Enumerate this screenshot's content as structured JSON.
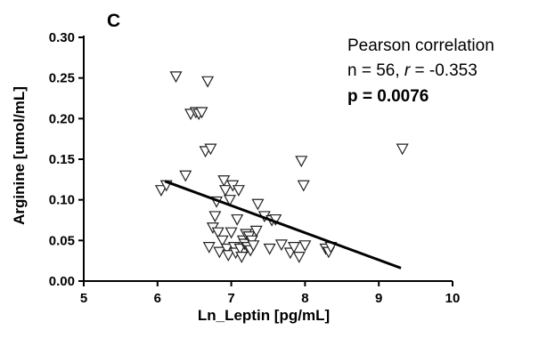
{
  "chart_data": {
    "type": "scatter",
    "panel_label": "C",
    "xlabel": "Ln_Leptin [pg/mL]",
    "ylabel": "Arginine [umol/mL]",
    "xlim": [
      5,
      10
    ],
    "ylim": [
      0,
      0.3
    ],
    "x_ticks": [
      "5",
      "6",
      "7",
      "8",
      "9",
      "10"
    ],
    "y_ticks": [
      "0.00",
      "0.05",
      "0.10",
      "0.15",
      "0.20",
      "0.25",
      "0.30"
    ],
    "grid": false,
    "marker": "open-triangle-down",
    "annotation": {
      "line1": "Pearson correlation",
      "line2_prefix": "n = 56, ",
      "line2_r": "r",
      "line2_suffix": " = -0.353",
      "line3": "p = 0.0076"
    },
    "points": [
      {
        "x": 6.05,
        "y": 0.112
      },
      {
        "x": 6.12,
        "y": 0.118
      },
      {
        "x": 6.25,
        "y": 0.252
      },
      {
        "x": 6.38,
        "y": 0.13
      },
      {
        "x": 6.45,
        "y": 0.206
      },
      {
        "x": 6.52,
        "y": 0.208
      },
      {
        "x": 6.56,
        "y": 0.206
      },
      {
        "x": 6.6,
        "y": 0.208
      },
      {
        "x": 6.65,
        "y": 0.16
      },
      {
        "x": 6.68,
        "y": 0.246
      },
      {
        "x": 6.72,
        "y": 0.163
      },
      {
        "x": 6.7,
        "y": 0.042
      },
      {
        "x": 6.75,
        "y": 0.066
      },
      {
        "x": 6.78,
        "y": 0.08
      },
      {
        "x": 6.8,
        "y": 0.098
      },
      {
        "x": 6.82,
        "y": 0.06
      },
      {
        "x": 6.84,
        "y": 0.036
      },
      {
        "x": 6.88,
        "y": 0.05
      },
      {
        "x": 6.9,
        "y": 0.124
      },
      {
        "x": 6.92,
        "y": 0.112
      },
      {
        "x": 6.94,
        "y": 0.04
      },
      {
        "x": 6.96,
        "y": 0.032
      },
      {
        "x": 6.98,
        "y": 0.1
      },
      {
        "x": 7.0,
        "y": 0.06
      },
      {
        "x": 7.02,
        "y": 0.118
      },
      {
        "x": 7.04,
        "y": 0.042
      },
      {
        "x": 7.06,
        "y": 0.035
      },
      {
        "x": 7.08,
        "y": 0.076
      },
      {
        "x": 7.1,
        "y": 0.112
      },
      {
        "x": 7.12,
        "y": 0.04
      },
      {
        "x": 7.14,
        "y": 0.03
      },
      {
        "x": 7.16,
        "y": 0.05
      },
      {
        "x": 7.18,
        "y": 0.046
      },
      {
        "x": 7.2,
        "y": 0.058
      },
      {
        "x": 7.22,
        "y": 0.042
      },
      {
        "x": 7.24,
        "y": 0.055
      },
      {
        "x": 7.26,
        "y": 0.038
      },
      {
        "x": 7.28,
        "y": 0.05
      },
      {
        "x": 7.3,
        "y": 0.044
      },
      {
        "x": 7.34,
        "y": 0.062
      },
      {
        "x": 7.36,
        "y": 0.095
      },
      {
        "x": 7.45,
        "y": 0.08
      },
      {
        "x": 7.55,
        "y": 0.075
      },
      {
        "x": 7.6,
        "y": 0.076
      },
      {
        "x": 7.52,
        "y": 0.04
      },
      {
        "x": 7.68,
        "y": 0.045
      },
      {
        "x": 7.8,
        "y": 0.035
      },
      {
        "x": 7.85,
        "y": 0.042
      },
      {
        "x": 7.92,
        "y": 0.03
      },
      {
        "x": 7.95,
        "y": 0.148
      },
      {
        "x": 7.98,
        "y": 0.118
      },
      {
        "x": 8.0,
        "y": 0.044
      },
      {
        "x": 8.28,
        "y": 0.04
      },
      {
        "x": 8.32,
        "y": 0.036
      },
      {
        "x": 8.35,
        "y": 0.042
      },
      {
        "x": 9.32,
        "y": 0.163
      }
    ],
    "regression_line": {
      "x": [
        6.1,
        9.3
      ],
      "y": [
        0.123,
        0.016
      ]
    }
  }
}
